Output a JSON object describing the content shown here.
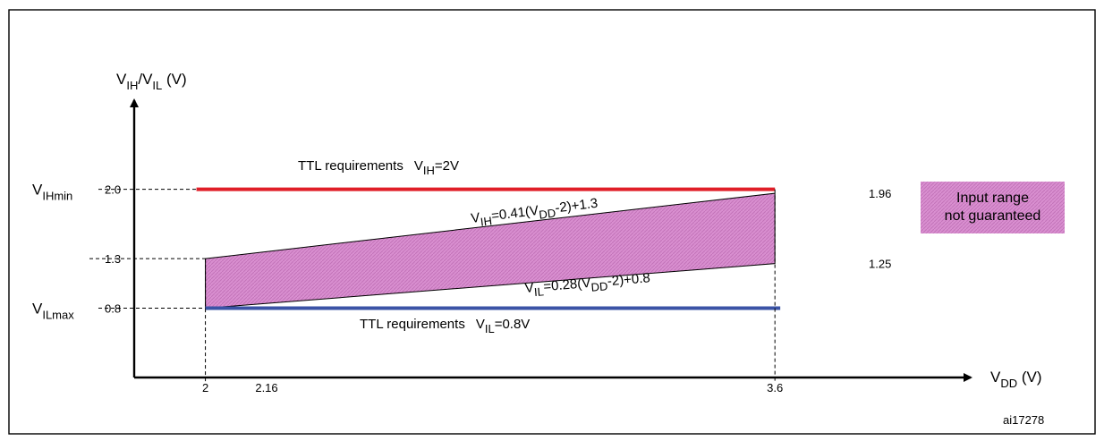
{
  "figure_id": "ai17278",
  "legend": {
    "label_line1": "Input range",
    "label_line2": "not guaranteed",
    "color": "#d98fd0"
  },
  "colors": {
    "ih_line": "#e01e28",
    "il_line": "#3b53a6",
    "region": "#d98fd0"
  },
  "chart_data": {
    "type": "line",
    "xlabel": {
      "main": "V",
      "sub": "DD",
      "tail": " (V)"
    },
    "ylabel": {
      "main": "V",
      "sub1": "IH",
      "mid": "/V",
      "sub2": "IL",
      "tail": " (V)"
    },
    "x_ticks": [
      "2",
      "2.16",
      "3.6"
    ],
    "y_ticks": [
      "2.0",
      "1.3",
      "0.8"
    ],
    "y_tick_names": [
      {
        "main": "V",
        "sub": "IHmin",
        "value": 2.0
      },
      {
        "main": "V",
        "sub": "ILmax",
        "value": 0.8
      }
    ],
    "xlim": [
      1.8,
      4.15
    ],
    "ylim": [
      0.1,
      2.9
    ],
    "ttl_ih": {
      "text": "TTL requirements",
      "eq_main": "V",
      "eq_sub": "IH",
      "eq_tail": "=2V",
      "x": [
        2.0,
        3.6
      ],
      "y": [
        2.0,
        2.0
      ]
    },
    "ttl_il": {
      "text": "TTL requirements",
      "eq_main": "V",
      "eq_sub": "IL",
      "eq_tail": "=0.8V",
      "x": [
        2.0,
        3.615
      ],
      "y": [
        0.8,
        0.8
      ]
    },
    "series": [
      {
        "formula": {
          "a": "V",
          "a_sub": "IH",
          "b": "=0.41(V",
          "b_sub": "DD",
          "c": "-2)+1.3"
        },
        "x": [
          2.0,
          3.6
        ],
        "y": [
          1.3,
          1.96
        ]
      },
      {
        "formula": {
          "a": "V",
          "a_sub": "IL",
          "b": "=0.28(V",
          "b_sub": "DD",
          "c": "-2)+0.8"
        },
        "x": [
          2.0,
          3.6
        ],
        "y": [
          0.8,
          1.25
        ]
      }
    ],
    "annotations": [
      {
        "text": "1.96",
        "x": 3.6,
        "y": 1.96
      },
      {
        "text": "1.25",
        "x": 3.6,
        "y": 1.25
      }
    ]
  }
}
